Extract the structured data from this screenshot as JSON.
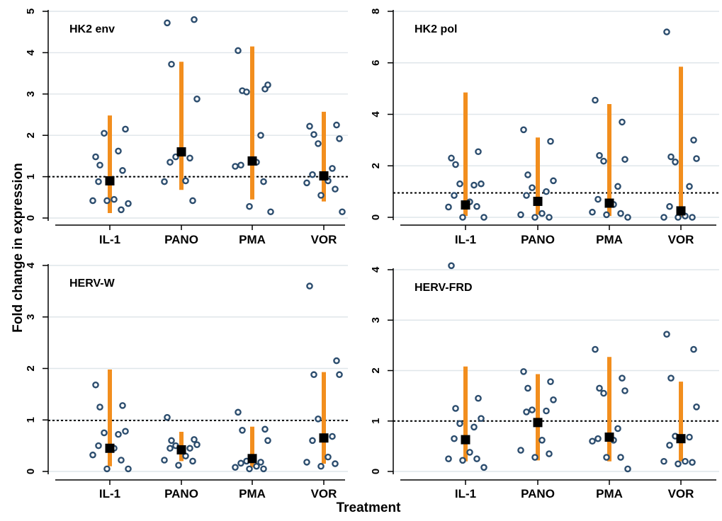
{
  "figure": {
    "ylabel": "Fold change in expression",
    "xlabel": "Treatment"
  },
  "chart_data": [
    {
      "type": "scatter",
      "title": "HK2 env",
      "categories": [
        "IL-1",
        "PANO",
        "PMA",
        "VOR"
      ],
      "ylim": [
        0,
        5
      ],
      "yticks": [
        0,
        1,
        2,
        3,
        4,
        5
      ],
      "reference_line": 1,
      "grid": true,
      "points": [
        [
          1.48,
          1.15,
          1.28,
          2.15,
          2.05,
          1.62,
          0.88,
          0.45,
          0.42,
          0.2,
          0.42,
          0.35
        ],
        [
          4.72,
          4.8,
          3.72,
          2.88,
          1.48,
          1.45,
          1.35,
          0.9,
          0.88,
          0.42
        ],
        [
          4.05,
          3.12,
          3.08,
          3.22,
          3.05,
          2.0,
          1.28,
          1.35,
          1.25,
          0.88,
          0.28,
          0.15
        ],
        [
          2.22,
          2.25,
          2.02,
          1.92,
          1.8,
          1.2,
          1.05,
          0.9,
          0.85,
          0.7,
          0.55,
          0.15
        ]
      ],
      "mean": [
        0.9,
        1.6,
        1.38,
        1.02
      ],
      "range_low": [
        0.12,
        0.68,
        0.45,
        0.4
      ],
      "range_high": [
        2.48,
        3.78,
        4.15,
        2.57
      ]
    },
    {
      "type": "scatter",
      "title": "HK2 pol",
      "categories": [
        "IL-1",
        "PANO",
        "PMA",
        "VOR"
      ],
      "ylim": [
        0,
        8
      ],
      "yticks": [
        0,
        2,
        4,
        6,
        8
      ],
      "reference_line": 0.95,
      "grid": true,
      "points": [
        [
          2.3,
          2.55,
          2.05,
          1.3,
          1.3,
          1.25,
          0.85,
          0.6,
          0.4,
          0.42,
          0.0,
          0.0
        ],
        [
          3.4,
          2.95,
          1.65,
          1.42,
          1.15,
          1.0,
          0.85,
          0.15,
          0.1,
          0.0,
          0.0
        ],
        [
          4.55,
          3.7,
          2.4,
          2.25,
          2.18,
          1.2,
          0.7,
          0.5,
          0.2,
          0.15,
          0.1,
          0.0
        ],
        [
          7.2,
          3.0,
          2.35,
          2.28,
          2.15,
          1.2,
          0.42,
          0.05,
          0.0,
          0.0,
          0.0
        ]
      ],
      "mean": [
        0.48,
        0.62,
        0.55,
        0.25
      ],
      "range_low": [
        0.05,
        0.1,
        0.05,
        0.0
      ],
      "range_high": [
        4.85,
        3.1,
        4.4,
        5.85
      ]
    },
    {
      "type": "scatter",
      "title": "HERV-W",
      "categories": [
        "IL-1",
        "PANO",
        "PMA",
        "VOR"
      ],
      "ylim": [
        0,
        4
      ],
      "yticks": [
        0,
        1,
        2,
        3,
        4
      ],
      "reference_line": 0.99,
      "grid": true,
      "points": [
        [
          1.68,
          1.28,
          1.25,
          0.78,
          0.75,
          0.72,
          0.5,
          0.45,
          0.32,
          0.22,
          0.05,
          0.05
        ],
        [
          1.05,
          0.62,
          0.6,
          0.52,
          0.5,
          0.45,
          0.45,
          0.3,
          0.22,
          0.2,
          0.12
        ],
        [
          1.15,
          0.82,
          0.8,
          0.6,
          0.2,
          0.18,
          0.16,
          0.1,
          0.08,
          0.05,
          0.05
        ],
        [
          3.6,
          2.15,
          1.88,
          1.88,
          1.02,
          0.68,
          0.6,
          0.28,
          0.18,
          0.15,
          0.1
        ]
      ],
      "mean": [
        0.45,
        0.42,
        0.25,
        0.65
      ],
      "range_low": [
        0.1,
        0.2,
        0.08,
        0.15
      ],
      "range_high": [
        1.98,
        0.77,
        0.87,
        1.93
      ]
    },
    {
      "type": "scatter",
      "title": "HERV-FRD",
      "categories": [
        "IL-1",
        "PANO",
        "PMA",
        "VOR"
      ],
      "ylim": [
        0,
        4
      ],
      "yticks": [
        0,
        1,
        2,
        3,
        4
      ],
      "reference_line": 1,
      "grid": true,
      "points": [
        [
          4.08,
          1.45,
          1.25,
          1.05,
          0.95,
          0.88,
          0.65,
          0.38,
          0.25,
          0.25,
          0.22,
          0.08
        ],
        [
          1.98,
          1.78,
          1.65,
          1.42,
          1.22,
          1.2,
          1.18,
          0.62,
          0.42,
          0.35,
          0.28
        ],
        [
          2.42,
          1.85,
          1.65,
          1.6,
          1.55,
          0.85,
          0.65,
          0.62,
          0.6,
          0.28,
          0.28,
          0.05
        ],
        [
          2.72,
          2.42,
          1.85,
          1.28,
          0.7,
          0.68,
          0.52,
          0.2,
          0.2,
          0.18,
          0.15
        ]
      ],
      "mean": [
        0.63,
        0.97,
        0.68,
        0.65
      ],
      "range_low": [
        0.2,
        0.22,
        0.2,
        0.2
      ],
      "range_high": [
        2.08,
        1.93,
        2.27,
        1.78
      ]
    }
  ]
}
